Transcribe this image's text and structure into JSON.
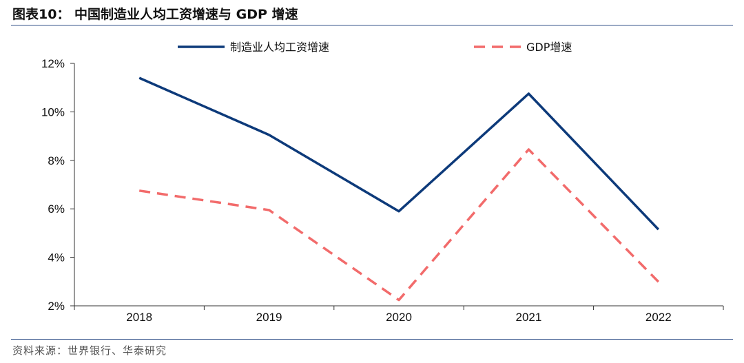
{
  "header": {
    "title": "图表10：  中国制造业人均工资增速与 GDP 增速"
  },
  "source": {
    "text": "资料来源：世界银行、华泰研究"
  },
  "colors": {
    "wage_series": "#0d3a7a",
    "gdp_series": "#f26b6b",
    "axis": "#333333",
    "rule": "#2d4d86"
  },
  "chart_data": {
    "type": "line",
    "categories": [
      "2018",
      "2019",
      "2020",
      "2021",
      "2022"
    ],
    "series": [
      {
        "name": "制造业人均工资增速",
        "values": [
          11.4,
          9.05,
          5.9,
          10.75,
          5.15
        ],
        "style": "solid"
      },
      {
        "name": "GDP增速",
        "values": [
          6.75,
          5.95,
          2.24,
          8.45,
          2.99
        ],
        "style": "dashed"
      }
    ],
    "ylim": [
      2,
      12
    ],
    "yticks": [
      2,
      4,
      6,
      8,
      10,
      12
    ],
    "ytick_labels": [
      "2%",
      "4%",
      "6%",
      "8%",
      "10%",
      "12%"
    ],
    "grid": false,
    "legend": "top"
  }
}
